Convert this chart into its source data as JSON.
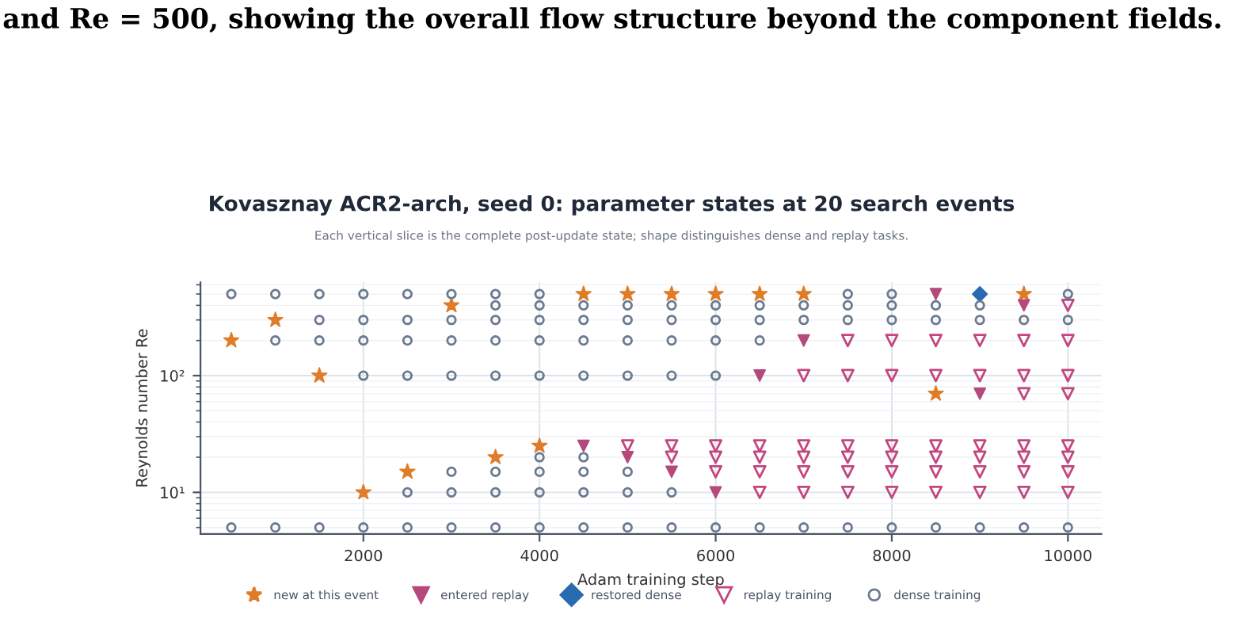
{
  "chart_data": {
    "type": "scatter",
    "title": "Kovasznay ACR2-arch, seed 0: parameter states at 20 search events",
    "subtitle": "Each vertical slice is the complete post-update state; shape distinguishes dense and replay tasks.",
    "xlabel": "Adam training step",
    "ylabel": "Reynolds number Re",
    "annotations": [
      "and Re = 500, showing the overall flow structure beyond the component fields."
    ],
    "log": "y",
    "xlim": [
      150,
      10380
    ],
    "xticks": [
      2000,
      4000,
      6000,
      8000,
      10000
    ],
    "ylim": [
      4.4,
      630
    ],
    "yticks": [
      {
        "value": 10,
        "label": "10¹"
      },
      {
        "value": 100,
        "label": "10²"
      }
    ],
    "grid": true,
    "legend": "bottom",
    "series": [
      {
        "name": "new at this event",
        "color": "#e07b28",
        "marker": "star",
        "x": [
          500,
          1000,
          1500,
          2000,
          2500,
          3000,
          3500,
          4000,
          4500,
          5000,
          5500,
          6000,
          6500,
          7000,
          8500,
          9500
        ],
        "values": [
          200,
          300,
          100,
          10,
          15,
          400,
          20,
          25,
          500,
          500,
          500,
          500,
          500,
          500,
          70,
          500
        ]
      },
      {
        "name": "entered replay",
        "color": "#b5497c",
        "marker": "triangle",
        "x": [
          4500,
          5000,
          5500,
          6000,
          6500,
          7000,
          8500,
          9000,
          9500
        ],
        "values": [
          25,
          20,
          15,
          10,
          100,
          200,
          500,
          70,
          400
        ]
      },
      {
        "name": "restored dense",
        "color": "#2a6ab0",
        "marker": "diamond",
        "x": [
          9000
        ],
        "values": [
          500
        ]
      },
      {
        "name": "replay training",
        "color": "#c2477f",
        "marker": "triangle",
        "x": [
          5000,
          5500,
          5500,
          6000,
          6000,
          6000,
          6500,
          6500,
          6500,
          6500,
          7000,
          7000,
          7000,
          7000,
          7000,
          7500,
          7500,
          7500,
          7500,
          7500,
          7500,
          8000,
          8000,
          8000,
          8000,
          8000,
          8000,
          8500,
          8500,
          8500,
          8500,
          8500,
          8500,
          9000,
          9000,
          9000,
          9000,
          9000,
          9000,
          9500,
          9500,
          9500,
          9500,
          9500,
          9500,
          9500,
          10000,
          10000,
          10000,
          10000,
          10000,
          10000,
          10000,
          10000
        ],
        "values": [
          25,
          25,
          20,
          25,
          20,
          15,
          25,
          20,
          15,
          10,
          100,
          25,
          20,
          15,
          10,
          200,
          100,
          25,
          20,
          15,
          10,
          200,
          100,
          25,
          20,
          15,
          10,
          200,
          100,
          25,
          20,
          15,
          10,
          200,
          100,
          25,
          20,
          15,
          10,
          200,
          100,
          70,
          25,
          20,
          15,
          10,
          400,
          200,
          100,
          70,
          25,
          20,
          15,
          10
        ]
      },
      {
        "name": "dense training",
        "color": "#6b7a8f",
        "marker": "circle",
        "x": [
          500,
          500,
          1000,
          1000,
          1000,
          1500,
          1500,
          1500,
          1500,
          2000,
          2000,
          2000,
          2000,
          2000,
          2500,
          2500,
          2500,
          2500,
          2500,
          2500,
          3000,
          3000,
          3000,
          3000,
          3000,
          3000,
          3000,
          3500,
          3500,
          3500,
          3500,
          3500,
          3500,
          3500,
          3500,
          4000,
          4000,
          4000,
          4000,
          4000,
          4000,
          4000,
          4000,
          4000,
          4500,
          4500,
          4500,
          4500,
          4500,
          4500,
          4500,
          4500,
          5000,
          5000,
          5000,
          5000,
          5000,
          5000,
          5000,
          5500,
          5500,
          5500,
          5500,
          5500,
          5500,
          6000,
          6000,
          6000,
          6000,
          6000,
          6500,
          6500,
          6500,
          6500,
          7000,
          7000,
          7000,
          7500,
          7500,
          7500,
          7500,
          8000,
          8000,
          8000,
          8000,
          8500,
          8500,
          8500,
          9000,
          9000,
          9000,
          9500,
          9500,
          10000,
          10000,
          10000
        ],
        "values": [
          500,
          5,
          500,
          200,
          5,
          500,
          300,
          200,
          5,
          500,
          300,
          200,
          100,
          5,
          500,
          300,
          200,
          100,
          10,
          5,
          500,
          300,
          200,
          100,
          15,
          10,
          5,
          500,
          400,
          300,
          200,
          100,
          15,
          10,
          5,
          500,
          400,
          300,
          200,
          100,
          20,
          15,
          10,
          5,
          400,
          300,
          200,
          100,
          20,
          15,
          10,
          5,
          400,
          300,
          200,
          100,
          15,
          10,
          5,
          400,
          300,
          200,
          100,
          10,
          5,
          400,
          300,
          200,
          100,
          5,
          400,
          300,
          200,
          5,
          400,
          300,
          5,
          500,
          400,
          300,
          5,
          500,
          400,
          300,
          5,
          400,
          300,
          5,
          400,
          300,
          5,
          300,
          5,
          500,
          300,
          5
        ]
      }
    ]
  }
}
